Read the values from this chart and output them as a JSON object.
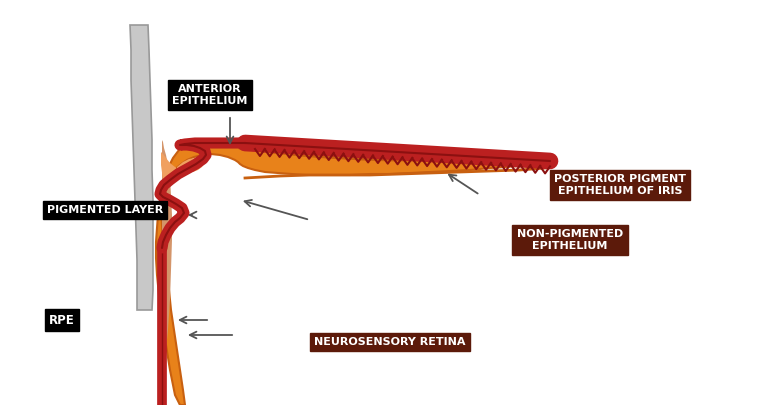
{
  "background_color": "#ffffff",
  "orange_color": "#E8821A",
  "dark_orange_color": "#C86010",
  "light_orange_color": "#F0A060",
  "salmon_color": "#D4956A",
  "red_dark_color": "#8B1010",
  "red_bright_color": "#BB2020",
  "gray_color": "#C8C8C8",
  "gray_dark_color": "#999999",
  "brown_color": "#5C1A0A",
  "black_color": "#000000",
  "white_color": "#ffffff",
  "labels": {
    "anterior_epithelium": "ANTERIOR\nEPITHELIUM",
    "pigmented_layer": "PIGMENTED LAYER",
    "rpe": "RPE",
    "posterior_pigment": "POSTERIOR PIGMENT\nEPITHELIUM OF IRIS",
    "non_pigmented": "NON-PIGMENTED\nEPITHELIUM",
    "neurosensory_retina": "NEUROSENSORY RETINA"
  },
  "figsize": [
    7.68,
    4.05
  ],
  "dpi": 100
}
